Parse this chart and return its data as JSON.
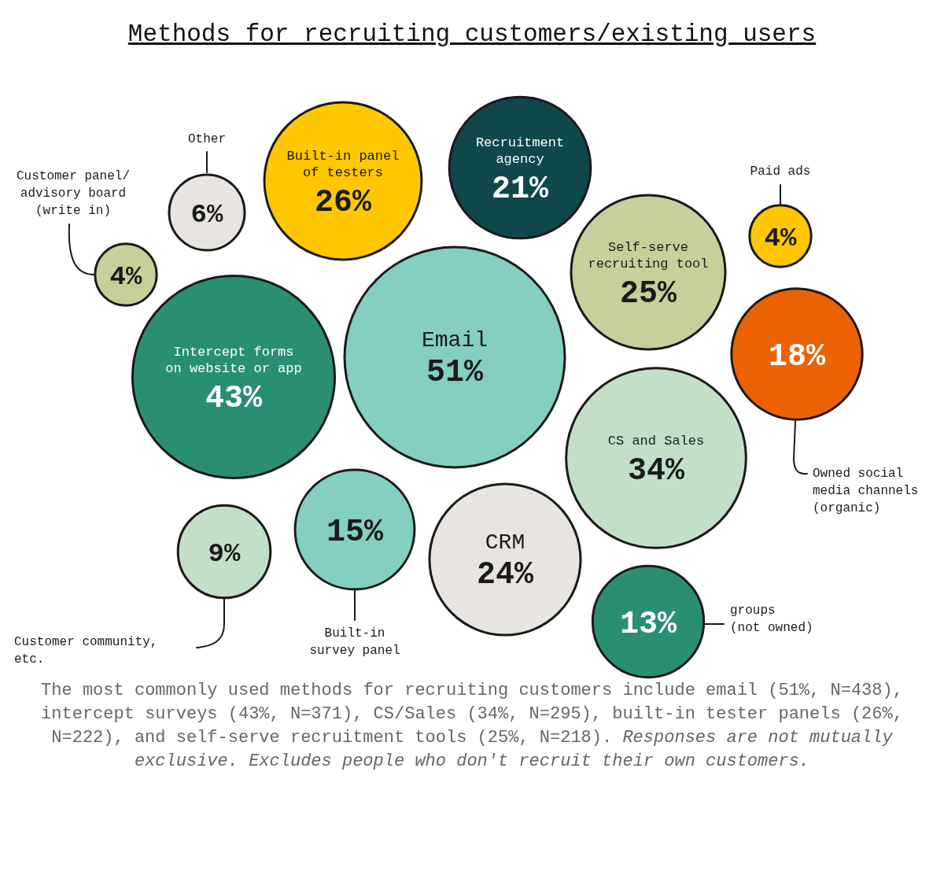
{
  "chart_data": {
    "type": "other",
    "title": "Methods for recruiting customers/existing users",
    "categories": [
      "Other",
      "Built-in panel of testers",
      "Recruitment agency",
      "Paid ads",
      "Customer panel/advisory board (write in)",
      "Self-serve recruiting tool",
      "Intercept forms on website or app",
      "Email",
      "Owned social media channels (organic)",
      "CS and Sales",
      "Customer community, etc.",
      "Built-in survey panel",
      "CRM",
      "groups (not owned)"
    ],
    "values": [
      6,
      26,
      21,
      4,
      4,
      25,
      43,
      51,
      18,
      34,
      9,
      15,
      24,
      13
    ],
    "value_labels": [
      "6%",
      "26%",
      "21%",
      "4%",
      "4%",
      "25%",
      "43%",
      "51%",
      "18%",
      "34%",
      "9%",
      "15%",
      "24%",
      "13%"
    ],
    "colors": [
      "#e8e4e0",
      "#ffc700",
      "#10474a",
      "#ffc700",
      "#c5d09a",
      "#c5d09a",
      "#2a8f72",
      "#84cfc2",
      "#eb6200",
      "#c3dfc8",
      "#c3dfc8",
      "#84cfc2",
      "#e8e4e0",
      "#2a8f72"
    ],
    "annotations": [
      "The most commonly used methods for recruiting customers include email (51%, N=438), intercept surveys (43%, N=371), CS/Sales (34%, N=295), built-in tester panels (26%, N=222), and self-serve recruitment tools (25%, N=218).",
      "Responses are not mutually exclusive. Excludes people who don't recruit their own customers."
    ]
  }
}
